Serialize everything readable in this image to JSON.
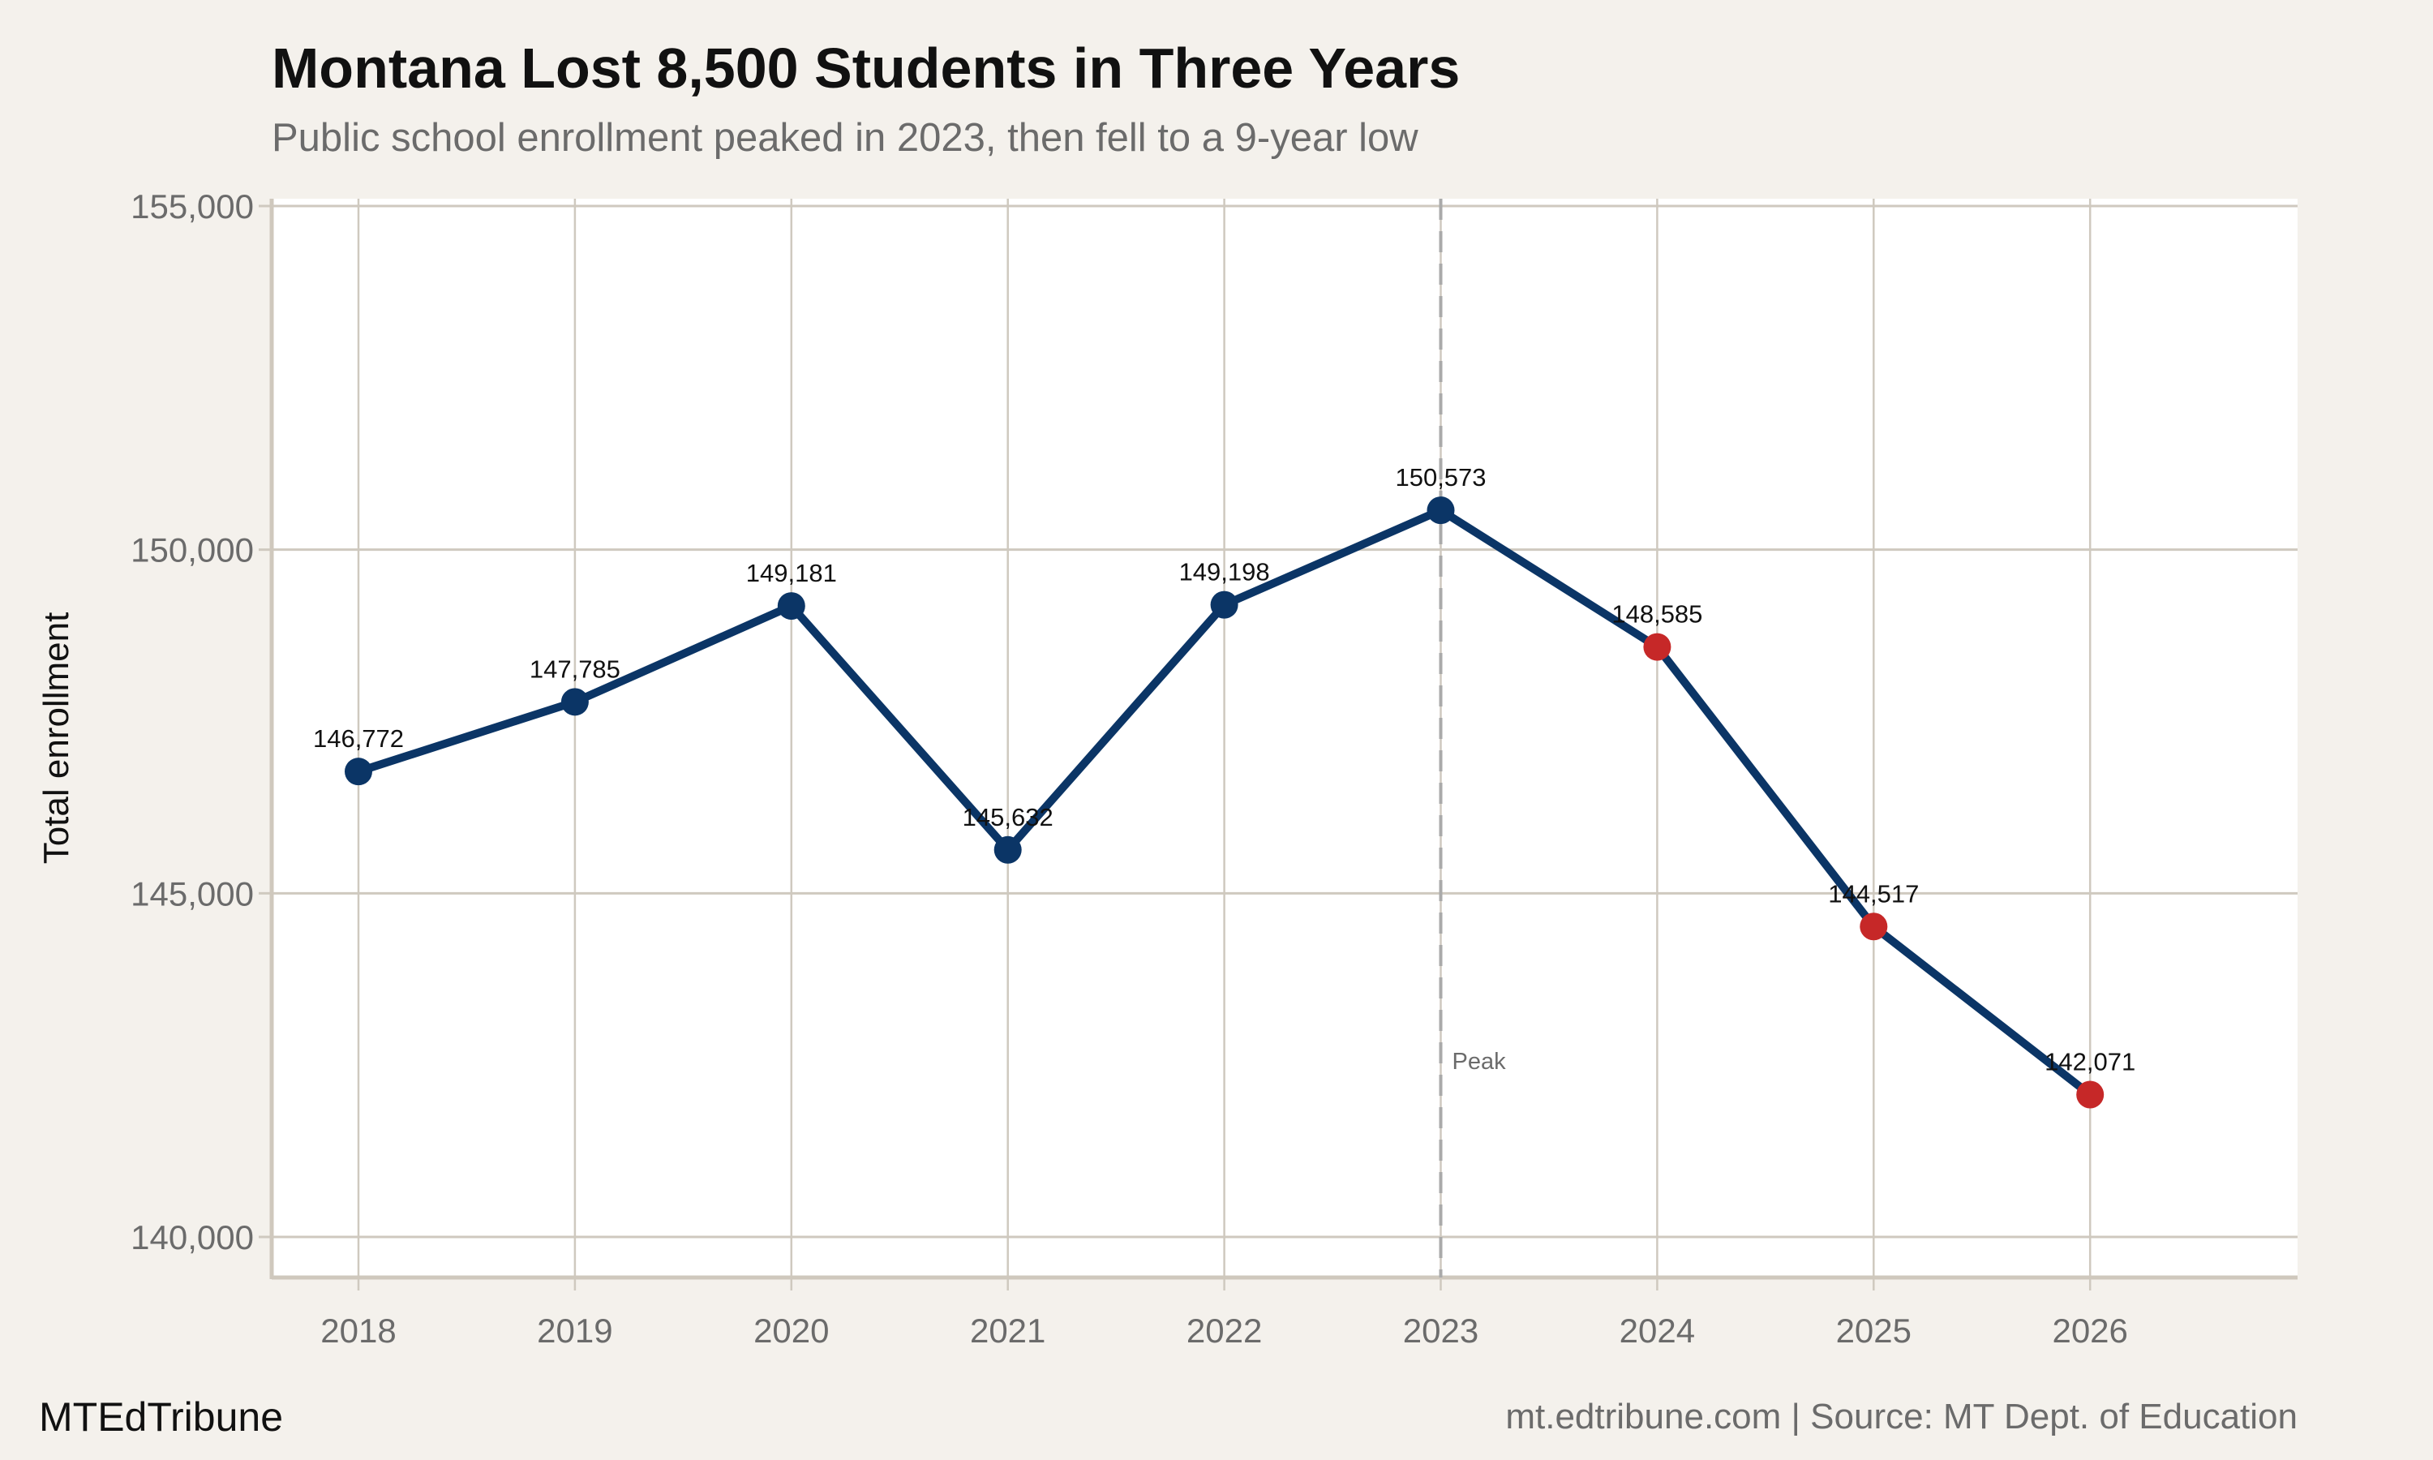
{
  "title": "Montana Lost 8,500 Students in Three Years",
  "subtitle": "Public school enrollment peaked in 2023, then fell to a 9-year low",
  "brand": "MTEdTribune",
  "source": "mt.edtribune.com | Source: MT Dept. of Education",
  "colors": {
    "background": "#f4f1ec",
    "panel": "#ffffff",
    "line": "#0b3566",
    "point_normal": "#0b3566",
    "point_decline": "#c62828",
    "grid": "#cfc9bf"
  },
  "chart_data": {
    "type": "line",
    "title": "Montana Lost 8,500 Students in Three Years",
    "subtitle": "Public school enrollment peaked in 2023, then fell to a 9-year low",
    "xlabel": "",
    "ylabel": "Total enrollment",
    "x": [
      2018,
      2019,
      2020,
      2021,
      2022,
      2023,
      2024,
      2025,
      2026
    ],
    "values": [
      146772,
      147785,
      149181,
      145632,
      149198,
      150573,
      148585,
      144517,
      142071
    ],
    "labels": [
      "146,772",
      "147,785",
      "149,181",
      "145,632",
      "149,198",
      "150,573",
      "148,585",
      "144,517",
      "142,071"
    ],
    "decline_years": [
      2024,
      2025,
      2026
    ],
    "xlim": [
      2017.6,
      2026.9
    ],
    "ylim": [
      139400,
      155200
    ],
    "yticks": [
      140000,
      145000,
      150000,
      155000
    ],
    "ytick_labels": [
      "140,000",
      "145,000",
      "150,000",
      "155,000"
    ],
    "xtick_labels": [
      "2018",
      "2019",
      "2020",
      "2021",
      "2022",
      "2023",
      "2024",
      "2025",
      "2026"
    ],
    "annotation": {
      "x": 2023,
      "text": "Peak",
      "style": "dashed vertical line"
    },
    "grid": true,
    "legend": "none"
  }
}
